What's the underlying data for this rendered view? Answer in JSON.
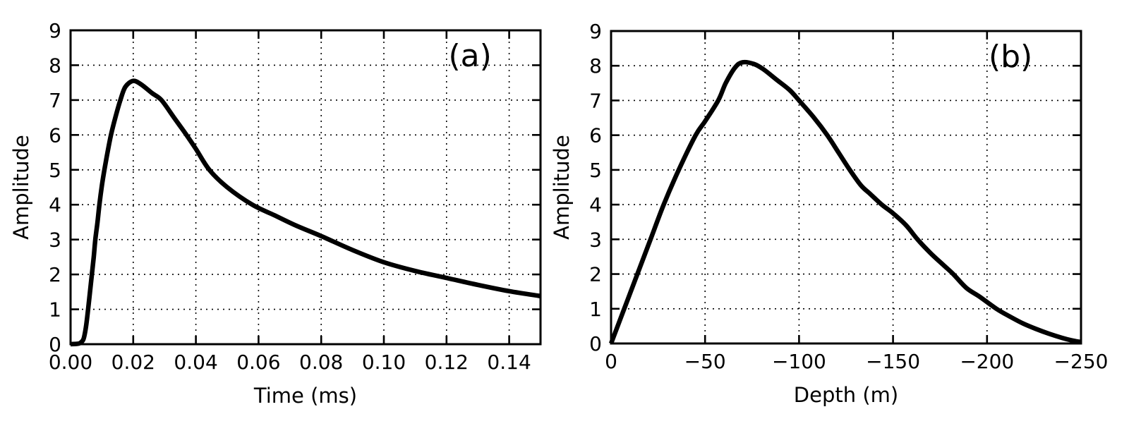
{
  "figure": {
    "background": "#ffffff",
    "text_color": "#000000",
    "grid_color": "#000000",
    "spine_color": "#000000"
  },
  "chart_data": [
    {
      "id": "panel-a",
      "type": "line",
      "panel_label": "(a)",
      "title": "",
      "xlabel": "Time (ms)",
      "ylabel": "Amplitude",
      "xlim": [
        0,
        0.15
      ],
      "ylim": [
        0,
        9
      ],
      "xticks": [
        0.0,
        0.02,
        0.04,
        0.06,
        0.08,
        0.1,
        0.12,
        0.14
      ],
      "xtick_labels": [
        "0.00",
        "0.02",
        "0.04",
        "0.06",
        "0.08",
        "0.10",
        "0.12",
        "0.14"
      ],
      "yticks": [
        0,
        1,
        2,
        3,
        4,
        5,
        6,
        7,
        8,
        9
      ],
      "ytick_labels": [
        "0",
        "1",
        "2",
        "3",
        "4",
        "5",
        "6",
        "7",
        "8",
        "9"
      ],
      "grid": true,
      "grid_style": "dotted",
      "legend": null,
      "series": [
        {
          "name": "amplitude-vs-time",
          "color": "#000000",
          "line_width": 6.5,
          "x": [
            0,
            0.002,
            0.003,
            0.004,
            0.0045,
            0.005,
            0.0056,
            0.0062,
            0.0068,
            0.0074,
            0.0079,
            0.0086,
            0.0092,
            0.01,
            0.0108,
            0.0118,
            0.0129,
            0.0143,
            0.0159,
            0.0175,
            0.02,
            0.0225,
            0.026,
            0.029,
            0.033,
            0.037,
            0.04,
            0.0443,
            0.05,
            0.058,
            0.065,
            0.072,
            0.08,
            0.09,
            0.1,
            0.11,
            0.12,
            0.13,
            0.14,
            0.15
          ],
          "y": [
            0,
            0.01,
            0.03,
            0.12,
            0.28,
            0.55,
            1.0,
            1.5,
            2.0,
            2.5,
            3.0,
            3.5,
            4.0,
            4.55,
            5.0,
            5.5,
            6.0,
            6.5,
            7.0,
            7.38,
            7.55,
            7.45,
            7.2,
            7.0,
            6.5,
            6.0,
            5.6,
            5.0,
            4.5,
            4.0,
            3.7,
            3.4,
            3.1,
            2.7,
            2.35,
            2.1,
            1.9,
            1.7,
            1.52,
            1.38
          ]
        }
      ]
    },
    {
      "id": "panel-b",
      "type": "line",
      "panel_label": "(b)",
      "title": "",
      "xlabel": "Depth (m)",
      "ylabel": "Amplitude",
      "xlim": [
        0,
        -250
      ],
      "ylim": [
        0,
        9
      ],
      "xticks": [
        0,
        -50,
        -100,
        -150,
        -200,
        -250
      ],
      "xtick_labels": [
        "0",
        "−50",
        "−100",
        "−150",
        "−200",
        "−250"
      ],
      "yticks": [
        0,
        1,
        2,
        3,
        4,
        5,
        6,
        7,
        8,
        9
      ],
      "ytick_labels": [
        "0",
        "1",
        "2",
        "3",
        "4",
        "5",
        "6",
        "7",
        "8",
        "9"
      ],
      "grid": true,
      "grid_style": "dotted",
      "legend": null,
      "series": [
        {
          "name": "amplitude-vs-depth",
          "color": "#000000",
          "line_width": 6.5,
          "x": [
            0,
            -7,
            -14,
            -21,
            -28,
            -36,
            -45,
            -50,
            -57,
            -61,
            -66,
            -70,
            -76,
            -81,
            -88,
            -95,
            -100,
            -108,
            -115,
            -121,
            -127,
            -133,
            -138,
            -144,
            -150,
            -157,
            -163,
            -170,
            -177,
            -182,
            -189,
            -196,
            -205,
            -212,
            -219,
            -226,
            -233,
            -240,
            -245,
            -250
          ],
          "y": [
            0,
            1.0,
            2.0,
            3.0,
            4.0,
            5.0,
            6.0,
            6.4,
            7.0,
            7.5,
            7.95,
            8.1,
            8.05,
            7.9,
            7.6,
            7.3,
            7.0,
            6.5,
            6.0,
            5.5,
            5.0,
            4.55,
            4.3,
            4.0,
            3.75,
            3.4,
            3.0,
            2.6,
            2.25,
            2.0,
            1.6,
            1.35,
            1.0,
            0.78,
            0.58,
            0.42,
            0.28,
            0.16,
            0.09,
            0.04
          ]
        }
      ]
    }
  ]
}
